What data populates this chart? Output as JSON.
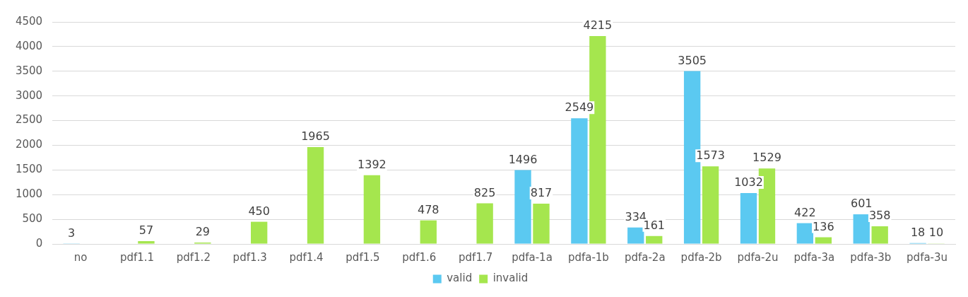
{
  "chart_data": {
    "type": "bar",
    "categories": [
      "no",
      "pdf1.1",
      "pdf1.2",
      "pdf1.3",
      "pdf1.4",
      "pdf1.5",
      "pdf1.6",
      "pdf1.7",
      "pdfa-1a",
      "pdfa-1b",
      "pdfa-2a",
      "pdfa-2b",
      "pdfa-2u",
      "pdfa-3a",
      "pdfa-3b",
      "pdfa-3u"
    ],
    "series": [
      {
        "name": "valid",
        "color": "#5bc9f1",
        "values": [
          3,
          null,
          null,
          null,
          null,
          null,
          null,
          null,
          1496,
          2549,
          334,
          3505,
          1032,
          422,
          601,
          18
        ]
      },
      {
        "name": "invalid",
        "color": "#a5e64e",
        "values": [
          null,
          57,
          29,
          450,
          1965,
          1392,
          478,
          825,
          817,
          4215,
          161,
          1573,
          1529,
          136,
          358,
          10
        ]
      }
    ],
    "ylim": [
      0,
      4500
    ],
    "yticks": [
      0,
      500,
      1000,
      1500,
      2000,
      2500,
      3000,
      3500,
      4000,
      4500
    ],
    "grid": "y",
    "legend": "bottom",
    "data_labels": true
  }
}
